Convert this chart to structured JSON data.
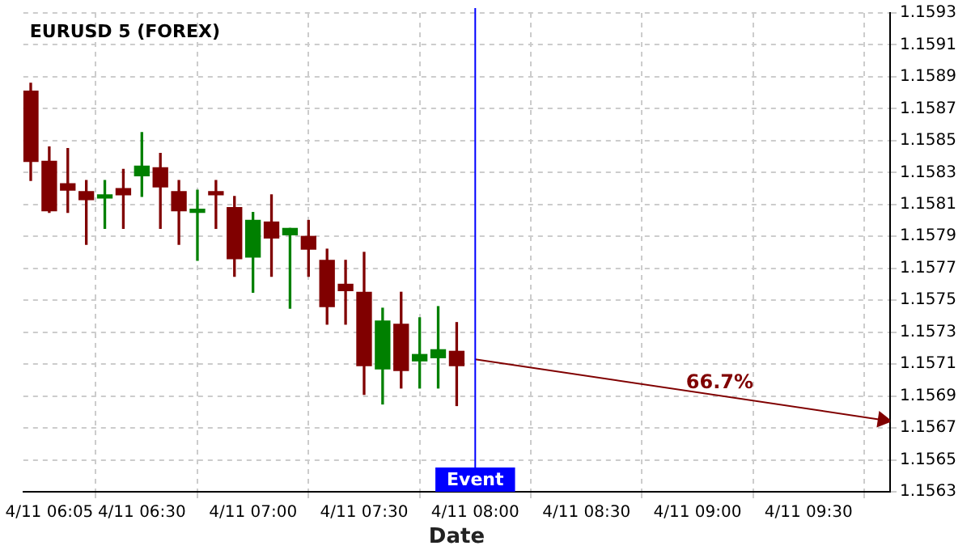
{
  "chart_data": {
    "type": "candlestick",
    "title": "EURUSD 5 (FOREX)",
    "xlabel": "Date",
    "series": [
      {
        "x": [
          "--04-11T06:00",
          "--04-11T06:05",
          "--04-11T06:10",
          "--04-11T06:15",
          "--04-11T06:20",
          "--04-11T06:25",
          "--04-11T06:30",
          "--04-11T06:35",
          "--04-11T06:40",
          "--04-11T06:45",
          "--04-11T06:50",
          "--04-11T06:55",
          "--04-11T07:00",
          "--04-11T07:05",
          "--04-11T07:10",
          "--04-11T07:15",
          "--04-11T07:20",
          "--04-11T07:25",
          "--04-11T07:30",
          "--04-11T07:35",
          "--04-11T07:40",
          "--04-11T07:45",
          "--04-11T07:50",
          "--04-11T07:55"
        ],
        "ohlc": [
          [
            1.15881,
            1.15886,
            1.15825,
            1.15837
          ],
          [
            1.15837,
            1.15846,
            1.15805,
            1.15806
          ],
          [
            1.15823,
            1.15845,
            1.15805,
            1.15819
          ],
          [
            1.15818,
            1.15825,
            1.15785,
            1.15813
          ],
          [
            1.15814,
            1.15825,
            1.15795,
            1.15815
          ],
          [
            1.1582,
            1.15832,
            1.15795,
            1.15816
          ],
          [
            1.15828,
            1.15855,
            1.15815,
            1.15834
          ],
          [
            1.15833,
            1.15842,
            1.15795,
            1.15821
          ],
          [
            1.15818,
            1.15825,
            1.15785,
            1.15806
          ],
          [
            1.15805,
            1.15819,
            1.15775,
            1.15806
          ],
          [
            1.15817,
            1.15825,
            1.15795,
            1.15816
          ],
          [
            1.15808,
            1.15815,
            1.15765,
            1.15776
          ],
          [
            1.15777,
            1.15805,
            1.15755,
            1.158
          ],
          [
            1.15799,
            1.15816,
            1.15765,
            1.15789
          ],
          [
            1.15791,
            1.15795,
            1.15745,
            1.15795
          ],
          [
            1.1579,
            1.158,
            1.15765,
            1.15782
          ],
          [
            1.15775,
            1.15782,
            1.15735,
            1.15746
          ],
          [
            1.1576,
            1.15775,
            1.15735,
            1.15756
          ],
          [
            1.15755,
            1.1578,
            1.15691,
            1.15709
          ],
          [
            1.15707,
            1.15745,
            1.15685,
            1.15737
          ],
          [
            1.15735,
            1.15755,
            1.15695,
            1.15706
          ],
          [
            1.15712,
            1.15739,
            1.15695,
            1.15716
          ],
          [
            1.15714,
            1.15746,
            1.15695,
            1.15719
          ],
          [
            1.15718,
            1.15736,
            1.15684,
            1.15709
          ]
        ],
        "colors": [
          "#800000",
          "#800000",
          "#800000",
          "#800000",
          "#008000",
          "#800000",
          "#008000",
          "#800000",
          "#800000",
          "#008000",
          "#800000",
          "#800000",
          "#008000",
          "#800000",
          "#008000",
          "#800000",
          "#800000",
          "#800000",
          "#800000",
          "#008000",
          "#800000",
          "#008000",
          "#008000",
          "#800000"
        ]
      },
      {
        "type": "line",
        "color": "#800000",
        "x": [
          "--04-11T08:00",
          "--04-11T09:50"
        ],
        "values": [
          1.15713,
          1.15675
        ]
      }
    ],
    "annotations": [
      {
        "text": "66.7%",
        "x": "--04-11T09:06",
        "y": 1.1569
      }
    ],
    "ref_lines": [
      {
        "axis": "x",
        "value": "--04-11T08:00",
        "label": "Event",
        "color": "#0000ff"
      }
    ],
    "xlim": [
      "--04-11T05:58",
      "--04-11T09:52"
    ],
    "xticks": [
      {
        "value": "--04-11T06:05",
        "label": "4/11 06:05"
      },
      {
        "value": "--04-11T06:30",
        "label": "4/11 06:30"
      },
      {
        "value": "--04-11T07:00",
        "label": "4/11 07:00"
      },
      {
        "value": "--04-11T07:30",
        "label": "4/11 07:30"
      },
      {
        "value": "--04-11T08:00",
        "label": "4/11 08:00"
      },
      {
        "value": "--04-11T08:30",
        "label": "4/11 08:30"
      },
      {
        "value": "--04-11T09:00",
        "label": "4/11 09:00"
      },
      {
        "value": "--04-11T09:30",
        "label": "4/11 09:30"
      }
    ],
    "ylim": [
      1.1563,
      1.1593
    ],
    "yticks": [
      1.1563,
      1.1565,
      1.1567,
      1.1569,
      1.1571,
      1.1573,
      1.1575,
      1.1577,
      1.1579,
      1.1581,
      1.1583,
      1.1585,
      1.1587,
      1.1589,
      1.1591,
      1.1593
    ],
    "grid": true,
    "legend": false
  }
}
